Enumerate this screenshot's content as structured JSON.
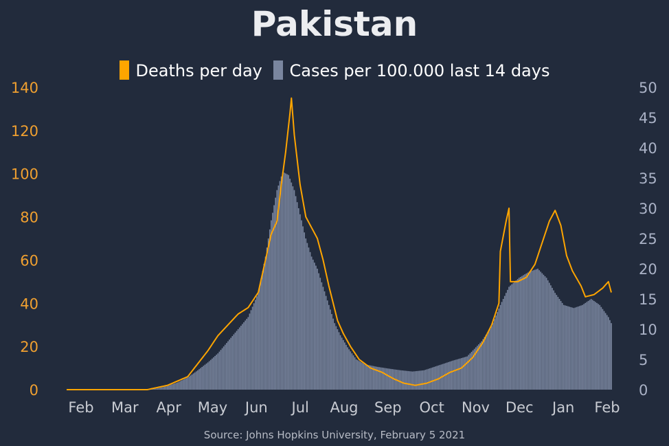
{
  "chart_data": {
    "type": "bar+line",
    "title": "Pakistan",
    "source": "Source: Johns Hopkins University, February 5 2021",
    "colors": {
      "background": "#222b3c",
      "deaths": "#ffa500",
      "cases": "#7a869f",
      "left_axis": "#f0a030",
      "right_axis": "#aab2c6",
      "x_axis": "#c9ccd3"
    },
    "x_labels": [
      "Feb",
      "Mar",
      "Apr",
      "May",
      "Jun",
      "Jul",
      "Aug",
      "Sep",
      "Oct",
      "Nov",
      "Dec",
      "Jan",
      "Feb"
    ],
    "y_left": {
      "min": 0,
      "max": 140,
      "ticks": [
        "0",
        "20",
        "40",
        "60",
        "80",
        "100",
        "120",
        "140"
      ]
    },
    "y_right": {
      "min": 0,
      "max": 50,
      "ticks": [
        "0",
        "5",
        "10",
        "15",
        "20",
        "25",
        "30",
        "35",
        "40",
        "45",
        "50"
      ]
    },
    "series": [
      {
        "name": "Deaths per day",
        "kind": "line",
        "axis": "left",
        "points": [
          [
            "2020-01-22",
            0
          ],
          [
            "2020-03-18",
            0
          ],
          [
            "2020-03-25",
            1
          ],
          [
            "2020-04-01",
            2
          ],
          [
            "2020-04-08",
            4
          ],
          [
            "2020-04-15",
            6
          ],
          [
            "2020-04-22",
            12
          ],
          [
            "2020-04-29",
            18
          ],
          [
            "2020-05-06",
            25
          ],
          [
            "2020-05-13",
            30
          ],
          [
            "2020-05-20",
            35
          ],
          [
            "2020-05-27",
            38
          ],
          [
            "2020-06-03",
            45
          ],
          [
            "2020-06-08",
            60
          ],
          [
            "2020-06-12",
            72
          ],
          [
            "2020-06-16",
            78
          ],
          [
            "2020-06-19",
            95
          ],
          [
            "2020-06-22",
            110
          ],
          [
            "2020-06-25",
            128
          ],
          [
            "2020-06-26",
            135
          ],
          [
            "2020-06-28",
            118
          ],
          [
            "2020-07-02",
            95
          ],
          [
            "2020-07-06",
            80
          ],
          [
            "2020-07-10",
            75
          ],
          [
            "2020-07-14",
            70
          ],
          [
            "2020-07-18",
            60
          ],
          [
            "2020-07-22",
            48
          ],
          [
            "2020-07-25",
            40
          ],
          [
            "2020-07-28",
            32
          ],
          [
            "2020-08-01",
            26
          ],
          [
            "2020-08-06",
            20
          ],
          [
            "2020-08-12",
            14
          ],
          [
            "2020-08-20",
            10
          ],
          [
            "2020-08-28",
            8
          ],
          [
            "2020-09-05",
            5
          ],
          [
            "2020-09-12",
            3
          ],
          [
            "2020-09-20",
            2
          ],
          [
            "2020-09-28",
            3
          ],
          [
            "2020-10-06",
            5
          ],
          [
            "2020-10-14",
            8
          ],
          [
            "2020-10-22",
            10
          ],
          [
            "2020-10-30",
            15
          ],
          [
            "2020-11-06",
            22
          ],
          [
            "2020-11-12",
            30
          ],
          [
            "2020-11-17",
            40
          ],
          [
            "2020-11-18",
            64
          ],
          [
            "2020-11-22",
            78
          ],
          [
            "2020-11-24",
            84
          ],
          [
            "2020-11-25",
            50
          ],
          [
            "2020-11-30",
            50
          ],
          [
            "2020-12-06",
            52
          ],
          [
            "2020-12-12",
            58
          ],
          [
            "2020-12-18",
            70
          ],
          [
            "2020-12-22",
            78
          ],
          [
            "2020-12-26",
            83
          ],
          [
            "2020-12-30",
            76
          ],
          [
            "2021-01-03",
            62
          ],
          [
            "2021-01-07",
            55
          ],
          [
            "2021-01-13",
            48
          ],
          [
            "2021-01-16",
            43
          ],
          [
            "2021-01-22",
            44
          ],
          [
            "2021-01-28",
            47
          ],
          [
            "2021-02-01",
            50
          ],
          [
            "2021-02-03",
            45
          ]
        ]
      },
      {
        "name": "Cases per 100.000 last 14 days",
        "kind": "bar",
        "axis": "right",
        "points": [
          [
            "2020-01-22",
            0
          ],
          [
            "2020-03-18",
            0
          ],
          [
            "2020-03-25",
            0.2
          ],
          [
            "2020-04-01",
            0.6
          ],
          [
            "2020-04-08",
            1.2
          ],
          [
            "2020-04-15",
            2
          ],
          [
            "2020-04-22",
            3.2
          ],
          [
            "2020-04-29",
            4.5
          ],
          [
            "2020-05-06",
            6
          ],
          [
            "2020-05-13",
            8
          ],
          [
            "2020-05-20",
            10
          ],
          [
            "2020-05-27",
            12
          ],
          [
            "2020-06-03",
            16
          ],
          [
            "2020-06-08",
            22
          ],
          [
            "2020-06-12",
            28
          ],
          [
            "2020-06-16",
            33
          ],
          [
            "2020-06-20",
            36
          ],
          [
            "2020-06-24",
            35.5
          ],
          [
            "2020-06-28",
            33
          ],
          [
            "2020-07-02",
            29
          ],
          [
            "2020-07-06",
            25
          ],
          [
            "2020-07-10",
            22
          ],
          [
            "2020-07-14",
            20
          ],
          [
            "2020-07-18",
            17
          ],
          [
            "2020-07-22",
            14
          ],
          [
            "2020-07-26",
            11
          ],
          [
            "2020-07-30",
            9
          ],
          [
            "2020-08-04",
            7
          ],
          [
            "2020-08-10",
            5
          ],
          [
            "2020-08-16",
            4.2
          ],
          [
            "2020-08-24",
            3.8
          ],
          [
            "2020-09-01",
            3.5
          ],
          [
            "2020-09-10",
            3.2
          ],
          [
            "2020-09-18",
            3
          ],
          [
            "2020-09-26",
            3.2
          ],
          [
            "2020-10-06",
            4
          ],
          [
            "2020-10-16",
            4.8
          ],
          [
            "2020-10-26",
            5.5
          ],
          [
            "2020-11-05",
            8
          ],
          [
            "2020-11-12",
            10.5
          ],
          [
            "2020-11-18",
            14
          ],
          [
            "2020-11-24",
            17
          ],
          [
            "2020-12-01",
            18.5
          ],
          [
            "2020-12-08",
            19.5
          ],
          [
            "2020-12-14",
            20
          ],
          [
            "2020-12-20",
            18.5
          ],
          [
            "2020-12-26",
            16
          ],
          [
            "2021-01-01",
            14
          ],
          [
            "2021-01-08",
            13.5
          ],
          [
            "2021-01-14",
            14
          ],
          [
            "2021-01-20",
            15
          ],
          [
            "2021-01-26",
            14
          ],
          [
            "2021-02-01",
            12
          ],
          [
            "2021-02-03",
            11
          ]
        ]
      }
    ],
    "date_range": [
      "2020-01-22",
      "2021-02-03"
    ],
    "grid": false,
    "legend_position": "top-center"
  }
}
